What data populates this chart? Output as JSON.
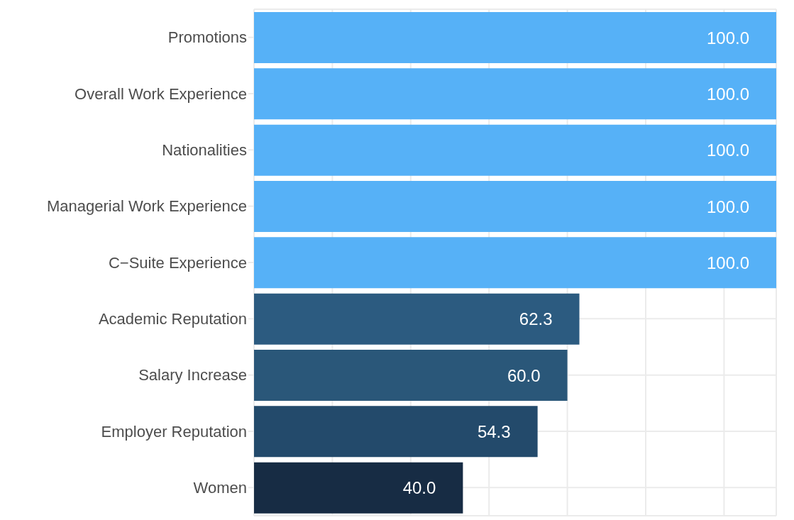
{
  "chart_data": {
    "type": "bar",
    "orientation": "horizontal",
    "categories": [
      "Promotions",
      "Overall Work Experience",
      "Nationalities",
      "Managerial Work Experience",
      "C−Suite Experience",
      "Academic Reputation",
      "Salary Increase",
      "Employer Reputation",
      "Women"
    ],
    "values": [
      100.0,
      100.0,
      100.0,
      100.0,
      100.0,
      62.3,
      60.0,
      54.3,
      40.0
    ],
    "colors": [
      "#56b1f7",
      "#56b1f7",
      "#56b1f7",
      "#56b1f7",
      "#56b1f7",
      "#2c5b80",
      "#2a5779",
      "#234a6b",
      "#172c44"
    ],
    "xlim": [
      0,
      100
    ],
    "value_labels": [
      "100.0",
      "100.0",
      "100.0",
      "100.0",
      "100.0",
      "62.3",
      "60.0",
      "54.3",
      "40.0"
    ],
    "tick_labels": "y",
    "grid": true
  }
}
